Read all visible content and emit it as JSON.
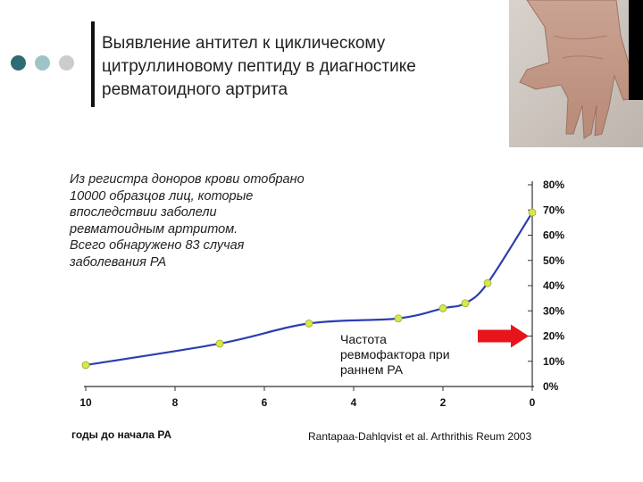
{
  "header": {
    "title_lines": [
      "Выявление антител к циклическому",
      "цитруллиновому пептиду в диагностике",
      "ревматоидного артрита"
    ]
  },
  "colors": {
    "dot_dark": "#2f6b73",
    "dot_light": "#9fc4c8",
    "dot_gray": "#cccccc",
    "line": "#2c3fb0",
    "marker": "#d6e84a",
    "arrow": "#e8141b"
  },
  "note_lines": [
    "Из регистра доноров крови отобрано",
    "10000 образцов лиц, которые",
    "впоследствии заболели",
    "ревматоидным артритом.",
    "Всего обнаружено 83 случая",
    "заболевания РА"
  ],
  "annotation_lines": [
    "Частота",
    "ревмофактора при",
    "раннем РА"
  ],
  "xaxis_title": "годы до начала РА",
  "citation": "Rantapaa-Dahlqvist et al. Arthrithis Reum 2003",
  "chart_data": {
    "type": "line",
    "x_ticks": [
      "10",
      "8",
      "6",
      "4",
      "2",
      "0"
    ],
    "y_ticks": [
      "0%",
      "10%",
      "20%",
      "30%",
      "40%",
      "50%",
      "60%",
      "70%",
      "80%"
    ],
    "xlim": [
      10,
      0
    ],
    "ylim": [
      0,
      80
    ],
    "xlabel": "годы до начала РА",
    "ylabel": "",
    "grid": false,
    "series": [
      {
        "x": [
          10,
          7,
          5,
          3,
          2,
          1.5,
          1,
          0
        ],
        "y": [
          8.5,
          17,
          25,
          27,
          31,
          33,
          41,
          69
        ]
      }
    ],
    "reference_arrow_value": 20
  }
}
